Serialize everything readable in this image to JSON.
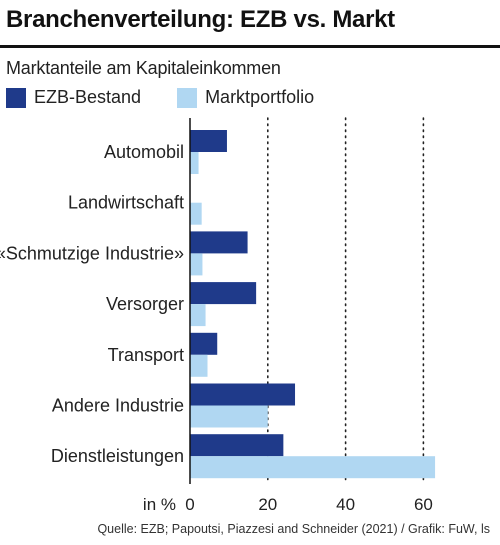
{
  "title": "Branchenverteilung: EZB vs. Markt",
  "subtitle": "Marktanteile am Kapitaleinkommen",
  "source": "Quelle: EZB; Papoutsi, Piazzesi and Schneider (2021) / Grafik: FuW, ls",
  "colors": {
    "ezb": "#1f3a8a",
    "markt": "#b0d7f2",
    "gridline": "#222222",
    "axis": "#111111"
  },
  "chart_data": {
    "type": "bar",
    "orientation": "horizontal",
    "categories": [
      "Automobil",
      "Landwirtschaft",
      "«Schmutzige Industrie»",
      "Versorger",
      "Transport",
      "Andere Industrie",
      "Dienstleistungen"
    ],
    "series": [
      {
        "name": "EZB-Bestand",
        "values": [
          9.5,
          0,
          14.8,
          17,
          7,
          27,
          24
        ]
      },
      {
        "name": "Marktportfolio",
        "values": [
          2.2,
          3,
          3.2,
          4,
          4.5,
          20,
          63
        ]
      }
    ],
    "xlabel": "in %",
    "xlim": [
      0,
      63
    ],
    "xticks": [
      0,
      20,
      40,
      60
    ],
    "grid": "vertical dotted",
    "legend_position": "top-left"
  }
}
